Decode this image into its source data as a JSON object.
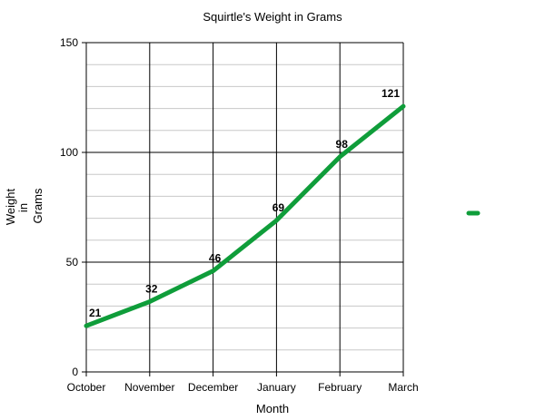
{
  "chart_data": {
    "type": "line",
    "title": "Squirtle's Weight in Grams",
    "xlabel": "Month",
    "ylabel_lines": [
      "Weight",
      "in",
      "Grams"
    ],
    "categories": [
      "October",
      "November",
      "December",
      "January",
      "February",
      "March"
    ],
    "series": [
      {
        "values": [
          21,
          32,
          46,
          69,
          98,
          121
        ],
        "color": "#0f9d3a"
      }
    ],
    "ylim": [
      0,
      150
    ],
    "yticks": [
      0,
      50,
      100,
      150
    ],
    "minor_step": 10,
    "grid": true,
    "legend": "right",
    "data_labels": true
  }
}
